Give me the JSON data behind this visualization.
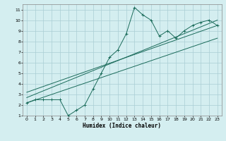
{
  "xlabel": "Humidex (Indice chaleur)",
  "xlim": [
    -0.5,
    23.5
  ],
  "ylim": [
    1,
    11.5
  ],
  "xticks": [
    0,
    1,
    2,
    3,
    4,
    5,
    6,
    7,
    8,
    9,
    10,
    11,
    12,
    13,
    14,
    15,
    16,
    17,
    18,
    19,
    20,
    21,
    22,
    23
  ],
  "yticks": [
    1,
    2,
    3,
    4,
    5,
    6,
    7,
    8,
    9,
    10,
    11
  ],
  "bg_color": "#d4eef0",
  "grid_color": "#aacdd4",
  "line_color": "#1a6b5a",
  "line1_x": [
    0,
    1,
    2,
    3,
    4,
    5,
    6,
    7,
    8,
    9,
    10,
    11,
    12,
    13,
    14,
    15,
    16,
    17,
    18,
    19,
    20,
    21,
    22,
    23
  ],
  "line1_y": [
    2.2,
    2.5,
    2.5,
    2.5,
    2.5,
    1.0,
    1.5,
    2.0,
    3.5,
    5.0,
    6.5,
    7.2,
    8.7,
    11.2,
    10.5,
    10.0,
    8.5,
    9.0,
    8.3,
    9.0,
    9.5,
    9.8,
    10.0,
    9.5
  ],
  "line2_x": [
    0,
    23
  ],
  "line2_y": [
    2.2,
    8.3
  ],
  "line3_x": [
    0,
    23
  ],
  "line3_y": [
    3.2,
    9.5
  ],
  "line4_x": [
    0,
    23
  ],
  "line4_y": [
    2.7,
    10.0
  ]
}
